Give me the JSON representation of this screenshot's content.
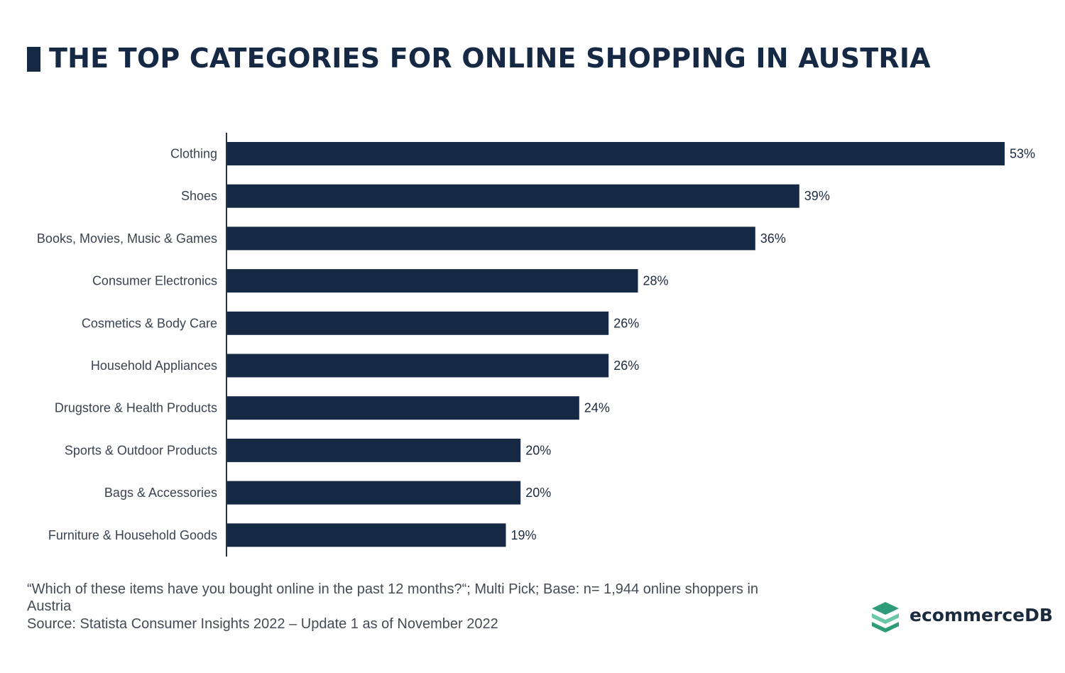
{
  "colors": {
    "bar": "#162944",
    "title": "#162944",
    "text": "#1b2a3d",
    "label": "#3b4350",
    "footnote": "#444b55",
    "axis": "#2a3340",
    "logo_dark": "#2e9c78",
    "logo_light": "#6cc8a4"
  },
  "title": "THE TOP CATEGORIES FOR ONLINE SHOPPING IN AUSTRIA",
  "footnotes": {
    "question_line1": "“Which of these items have you bought online in the past 12 months?“; Multi Pick; Base: n= 1,944 online shoppers in",
    "question_line2": "Austria",
    "source": "Source: Statista Consumer Insights 2022 – Update 1 as of November 2022"
  },
  "brand": {
    "name": "ecommerceDB",
    "icon": "stacked-layers-logo-icon"
  },
  "chart_data": {
    "type": "bar",
    "orientation": "horizontal",
    "categories": [
      "Clothing",
      "Shoes",
      "Books, Movies, Music & Games",
      "Consumer Electronics",
      "Cosmetics & Body Care",
      "Household Appliances",
      "Drugstore & Health Products",
      "Sports & Outdoor Products",
      "Bags & Accessories",
      "Furniture & Household Goods"
    ],
    "values": [
      53,
      39,
      36,
      28,
      26,
      26,
      24,
      20,
      20,
      19
    ],
    "value_labels": [
      "53%",
      "39%",
      "36%",
      "28%",
      "26%",
      "26%",
      "24%",
      "20%",
      "20%",
      "19%"
    ],
    "unit": "%",
    "xlim": [
      0,
      53
    ],
    "grid": false,
    "legend": "none"
  }
}
